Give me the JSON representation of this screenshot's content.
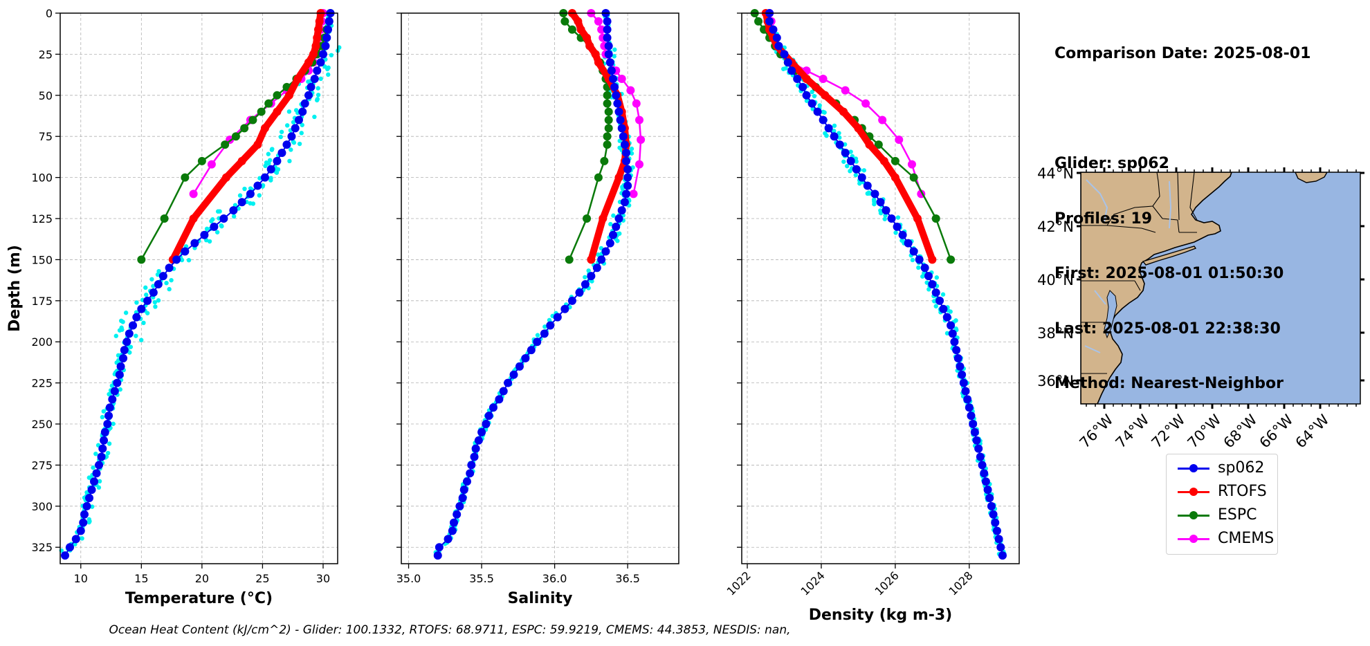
{
  "colors": {
    "glider": "#0000ee",
    "glider_points": "#00f0f0",
    "rtofs": "#ff0000",
    "espc": "#0a7a0a",
    "cmems": "#ff00ff",
    "land": "#d2b48c",
    "ocean": "#98b6e2",
    "rivers": "#a9c3e8"
  },
  "info": {
    "date": "Comparison Date: 2025-08-01",
    "glider": "Glider: sp062",
    "profiles": "Profiles: 19",
    "first": "First: 2025-08-01 01:50:30",
    "last": "Last: 2025-08-01 22:38:30",
    "method": "Method: Nearest-Neighbor"
  },
  "legend": [
    {
      "label": "sp062",
      "color_key": "glider"
    },
    {
      "label": "RTOFS",
      "color_key": "rtofs"
    },
    {
      "label": "ESPC",
      "color_key": "espc"
    },
    {
      "label": "CMEMS",
      "color_key": "cmems"
    }
  ],
  "footer": "Ocean Heat Content (kJ/cm^2) - Glider: 100.1332,  RTOFS: 68.9711,  ESPC: 59.9219,  CMEMS: 44.3853,  NESDIS: nan,",
  "chart_data": [
    {
      "type": "line",
      "xlabel": "Temperature (°C)",
      "ylabel": "Depth (m)",
      "xlim": [
        8.3,
        31.2
      ],
      "ylim": [
        335,
        0
      ],
      "xticks": [
        10,
        15,
        20,
        25,
        30
      ],
      "yticks": [
        0,
        25,
        50,
        75,
        100,
        125,
        150,
        175,
        200,
        225,
        250,
        275,
        300,
        325
      ],
      "grid": true,
      "series": [
        {
          "name": "sp062",
          "depth": [
            0,
            5,
            10,
            15,
            20,
            25,
            30,
            35,
            40,
            45,
            50,
            55,
            60,
            65,
            70,
            75,
            80,
            85,
            90,
            95,
            100,
            105,
            110,
            115,
            120,
            125,
            130,
            135,
            140,
            145,
            150,
            155,
            160,
            165,
            170,
            175,
            180,
            185,
            190,
            195,
            200,
            205,
            210,
            215,
            220,
            225,
            230,
            235,
            240,
            245,
            250,
            255,
            260,
            265,
            270,
            275,
            280,
            285,
            290,
            295,
            300,
            305,
            310,
            315,
            320,
            325,
            330
          ],
          "values": [
            30.6,
            30.5,
            30.4,
            30.3,
            30.2,
            30.0,
            29.8,
            29.5,
            29.3,
            29.0,
            28.8,
            28.5,
            28.3,
            28.0,
            27.7,
            27.4,
            27.0,
            26.6,
            26.2,
            25.7,
            25.2,
            24.6,
            24.0,
            23.3,
            22.6,
            21.8,
            21.0,
            20.2,
            19.4,
            18.6,
            17.9,
            17.3,
            16.8,
            16.4,
            16.0,
            15.5,
            15.0,
            14.6,
            14.3,
            14.0,
            13.8,
            13.6,
            13.5,
            13.3,
            13.2,
            13.0,
            12.8,
            12.6,
            12.4,
            12.3,
            12.2,
            12.0,
            11.9,
            11.8,
            11.7,
            11.5,
            11.3,
            11.1,
            10.9,
            10.7,
            10.5,
            10.3,
            10.2,
            10.0,
            9.6,
            9.1,
            8.7
          ]
        },
        {
          "name": "RTOFS",
          "depth": [
            0,
            5,
            10,
            15,
            20,
            25,
            30,
            40,
            50,
            60,
            70,
            80,
            90,
            100,
            125,
            150
          ],
          "values": [
            29.8,
            29.7,
            29.6,
            29.5,
            29.4,
            29.2,
            28.8,
            27.9,
            27.2,
            26.2,
            25.2,
            24.6,
            23.3,
            22.0,
            19.3,
            17.6
          ]
        },
        {
          "name": "ESPC",
          "depth": [
            0,
            5,
            10,
            15,
            20,
            25,
            30,
            35,
            40,
            45,
            50,
            55,
            60,
            65,
            70,
            75,
            80,
            90,
            100,
            125,
            150
          ],
          "values": [
            30.6,
            30.5,
            30.3,
            30.1,
            29.9,
            29.5,
            29.1,
            28.5,
            27.8,
            27.0,
            26.2,
            25.5,
            24.9,
            24.2,
            23.5,
            22.8,
            21.9,
            20.0,
            18.6,
            16.9,
            15.0
          ]
        },
        {
          "name": "CMEMS",
          "depth": [
            0,
            5,
            10,
            15,
            20,
            25,
            30,
            35,
            40,
            47,
            55,
            65,
            77,
            92,
            110
          ],
          "values": [
            30.0,
            29.9,
            29.8,
            29.7,
            29.6,
            29.5,
            29.2,
            28.8,
            28.2,
            27.0,
            25.7,
            24.0,
            22.3,
            20.8,
            19.3
          ]
        }
      ]
    },
    {
      "type": "line",
      "xlabel": "Salinity",
      "ylabel": "Depth (m)",
      "xlim": [
        34.95,
        36.85
      ],
      "ylim": [
        335,
        0
      ],
      "xticks": [
        35.0,
        35.5,
        36.0,
        36.5
      ],
      "yticks": [
        0,
        25,
        50,
        75,
        100,
        125,
        150,
        175,
        200,
        225,
        250,
        275,
        300,
        325
      ],
      "grid": true,
      "series": [
        {
          "name": "sp062",
          "depth": [
            0,
            5,
            10,
            15,
            20,
            25,
            30,
            35,
            40,
            45,
            50,
            55,
            60,
            65,
            70,
            75,
            80,
            85,
            90,
            95,
            100,
            105,
            110,
            115,
            120,
            125,
            130,
            135,
            140,
            145,
            150,
            155,
            160,
            165,
            170,
            175,
            180,
            185,
            190,
            195,
            200,
            205,
            210,
            215,
            220,
            225,
            230,
            235,
            240,
            245,
            250,
            255,
            260,
            265,
            270,
            275,
            280,
            285,
            290,
            295,
            300,
            305,
            310,
            315,
            320,
            325,
            330
          ],
          "values": [
            36.35,
            36.36,
            36.36,
            36.36,
            36.37,
            36.37,
            36.38,
            36.39,
            36.4,
            36.41,
            36.42,
            36.43,
            36.44,
            36.45,
            36.46,
            36.47,
            36.48,
            36.49,
            36.49,
            36.5,
            36.5,
            36.5,
            36.49,
            36.48,
            36.46,
            36.44,
            36.42,
            36.4,
            36.38,
            36.35,
            36.32,
            36.29,
            36.25,
            36.21,
            36.17,
            36.12,
            36.07,
            36.02,
            35.97,
            35.93,
            35.88,
            35.84,
            35.8,
            35.76,
            35.72,
            35.68,
            35.65,
            35.62,
            35.58,
            35.55,
            35.53,
            35.5,
            35.48,
            35.46,
            35.45,
            35.43,
            35.42,
            35.4,
            35.38,
            35.37,
            35.35,
            35.33,
            35.31,
            35.3,
            35.27,
            35.21,
            35.2
          ]
        },
        {
          "name": "RTOFS",
          "depth": [
            0,
            5,
            10,
            15,
            20,
            25,
            30,
            40,
            50,
            60,
            70,
            80,
            90,
            100,
            125,
            150
          ],
          "values": [
            36.12,
            36.16,
            36.18,
            36.22,
            36.24,
            36.28,
            36.3,
            36.37,
            36.43,
            36.46,
            36.48,
            36.49,
            36.48,
            36.44,
            36.33,
            36.25
          ]
        },
        {
          "name": "ESPC",
          "depth": [
            0,
            5,
            10,
            15,
            20,
            25,
            30,
            35,
            40,
            45,
            50,
            55,
            60,
            65,
            70,
            75,
            80,
            90,
            100,
            125,
            150
          ],
          "values": [
            36.06,
            36.07,
            36.12,
            36.18,
            36.24,
            36.28,
            36.31,
            36.33,
            36.35,
            36.36,
            36.36,
            36.36,
            36.37,
            36.37,
            36.37,
            36.36,
            36.36,
            36.34,
            36.3,
            36.22,
            36.1
          ]
        },
        {
          "name": "CMEMS",
          "depth": [
            0,
            5,
            10,
            15,
            20,
            25,
            30,
            35,
            40,
            47,
            55,
            65,
            77,
            92,
            110
          ],
          "values": [
            36.25,
            36.3,
            36.32,
            36.33,
            36.34,
            36.35,
            36.38,
            36.42,
            36.46,
            36.52,
            36.56,
            36.58,
            36.59,
            36.58,
            36.54
          ]
        }
      ]
    },
    {
      "type": "line",
      "xlabel": "Density (kg m-3)",
      "ylabel": "Depth (m)",
      "xlim": [
        1021.85,
        1029.35
      ],
      "ylim": [
        335,
        0
      ],
      "xticks": [
        1022,
        1024,
        1026,
        1028
      ],
      "yticks": [
        0,
        25,
        50,
        75,
        100,
        125,
        150,
        175,
        200,
        225,
        250,
        275,
        300,
        325
      ],
      "grid": true,
      "series": [
        {
          "name": "sp062",
          "depth": [
            0,
            5,
            10,
            15,
            20,
            25,
            30,
            35,
            40,
            45,
            50,
            55,
            60,
            65,
            70,
            75,
            80,
            85,
            90,
            95,
            100,
            105,
            110,
            115,
            120,
            125,
            130,
            135,
            140,
            145,
            150,
            155,
            160,
            165,
            170,
            175,
            180,
            185,
            190,
            195,
            200,
            205,
            210,
            215,
            220,
            225,
            230,
            235,
            240,
            245,
            250,
            255,
            260,
            265,
            270,
            275,
            280,
            285,
            290,
            295,
            300,
            305,
            310,
            315,
            320,
            325,
            330
          ],
          "values": [
            1022.6,
            1022.6,
            1022.7,
            1022.8,
            1022.85,
            1023.0,
            1023.1,
            1023.2,
            1023.35,
            1023.5,
            1023.6,
            1023.75,
            1023.9,
            1024.05,
            1024.2,
            1024.35,
            1024.5,
            1024.65,
            1024.8,
            1024.95,
            1025.1,
            1025.25,
            1025.45,
            1025.6,
            1025.75,
            1025.9,
            1026.05,
            1026.2,
            1026.35,
            1026.5,
            1026.65,
            1026.8,
            1026.9,
            1027.0,
            1027.1,
            1027.2,
            1027.3,
            1027.4,
            1027.5,
            1027.55,
            1027.6,
            1027.65,
            1027.7,
            1027.75,
            1027.8,
            1027.85,
            1027.9,
            1027.95,
            1028.0,
            1028.05,
            1028.1,
            1028.15,
            1028.2,
            1028.25,
            1028.3,
            1028.35,
            1028.4,
            1028.45,
            1028.5,
            1028.55,
            1028.6,
            1028.65,
            1028.7,
            1028.75,
            1028.8,
            1028.85,
            1028.9
          ]
        },
        {
          "name": "RTOFS",
          "depth": [
            0,
            5,
            10,
            15,
            20,
            25,
            30,
            40,
            50,
            60,
            70,
            80,
            90,
            100,
            125,
            150
          ],
          "values": [
            1022.5,
            1022.55,
            1022.6,
            1022.7,
            1022.8,
            1023.0,
            1023.2,
            1023.6,
            1024.1,
            1024.6,
            1025.0,
            1025.3,
            1025.7,
            1026.0,
            1026.6,
            1027.0
          ]
        },
        {
          "name": "ESPC",
          "depth": [
            0,
            5,
            10,
            15,
            20,
            25,
            30,
            35,
            40,
            45,
            50,
            55,
            60,
            65,
            70,
            75,
            80,
            90,
            100,
            125,
            150
          ],
          "values": [
            1022.2,
            1022.3,
            1022.45,
            1022.6,
            1022.75,
            1022.9,
            1023.1,
            1023.3,
            1023.6,
            1023.85,
            1024.1,
            1024.4,
            1024.6,
            1024.9,
            1025.1,
            1025.3,
            1025.55,
            1026.0,
            1026.5,
            1027.1,
            1027.5
          ]
        },
        {
          "name": "CMEMS",
          "depth": [
            0,
            5,
            10,
            15,
            20,
            25,
            30,
            35,
            40,
            47,
            55,
            65,
            77,
            92,
            110
          ],
          "values": [
            1022.6,
            1022.65,
            1022.7,
            1022.75,
            1022.8,
            1022.9,
            1023.2,
            1023.6,
            1024.05,
            1024.65,
            1025.2,
            1025.65,
            1026.1,
            1026.45,
            1026.7
          ]
        }
      ]
    }
  ],
  "map": {
    "lat_labels": [
      "44°N",
      "42°N",
      "40°N",
      "38°N",
      "36°N"
    ],
    "lon_labels": [
      "76°W",
      "74°W",
      "72°W",
      "70°W",
      "68°W",
      "66°W",
      "64°W"
    ]
  }
}
